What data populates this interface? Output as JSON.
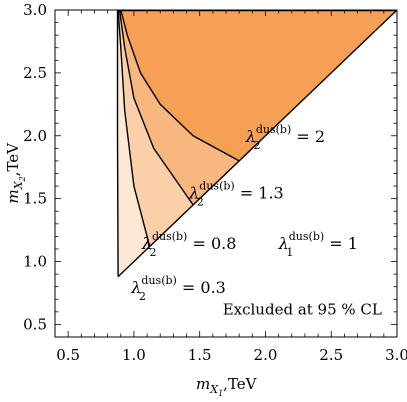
{
  "chart_data": {
    "type": "area",
    "xlabel": "m_{X_1},TeV",
    "ylabel": "m_{X_2},TeV",
    "xlim": [
      0.4,
      3.0
    ],
    "ylim": [
      0.4,
      3.0
    ],
    "x_ticks": [
      "0.5",
      "1.0",
      "1.5",
      "2.0",
      "2.5",
      "3.0"
    ],
    "y_ticks": [
      "0.5",
      "1.0",
      "1.5",
      "2.0",
      "2.5",
      "3.0"
    ],
    "x_tick_values": [
      0.5,
      1.0,
      1.5,
      2.0,
      2.5,
      3.0
    ],
    "y_tick_values": [
      0.5,
      1.0,
      1.5,
      2.0,
      2.5,
      3.0
    ],
    "diagonal": {
      "x": [
        0.88,
        3.0
      ],
      "y": [
        0.88,
        3.0
      ]
    },
    "series": [
      {
        "x": [
          0.88,
          0.875,
          0.875
        ],
        "y": [
          0.88,
          2.0,
          3.0
        ]
      },
      {
        "x": [
          1.12,
          1.0,
          0.93,
          0.9,
          0.88
        ],
        "y": [
          1.12,
          1.6,
          2.2,
          2.7,
          3.0
        ]
      },
      {
        "x": [
          1.45,
          1.15,
          1.0,
          0.93,
          0.89
        ],
        "y": [
          1.45,
          1.9,
          2.3,
          2.7,
          3.0
        ]
      },
      {
        "x": [
          1.8,
          1.45,
          1.2,
          1.05,
          0.95,
          0.9
        ],
        "y": [
          1.8,
          2.0,
          2.25,
          2.5,
          2.8,
          3.0
        ]
      }
    ],
    "shade_colors": [
      "#fde8d4",
      "#fbcfa8",
      "#f8b77f",
      "#f5a054"
    ],
    "annotations": [
      {
        "lambda": "λ",
        "sub": "2",
        "sup": "dus(b)",
        "rest": " = 2",
        "x": 1.85,
        "y": 1.95
      },
      {
        "lambda": "λ",
        "sub": "2",
        "sup": "dus(b)",
        "rest": " = 1.3",
        "x": 1.42,
        "y": 1.5
      },
      {
        "lambda": "λ",
        "sub": "2",
        "sup": "dus(b)",
        "rest": " = 0.8",
        "x": 1.06,
        "y": 1.1
      },
      {
        "lambda": "λ",
        "sub": "1",
        "sup": "dus(b)",
        "rest": " = 1",
        "x": 2.1,
        "y": 1.1
      },
      {
        "lambda": "λ",
        "sub": "2",
        "sup": "dus(b)",
        "rest": " = 0.3",
        "x": 0.98,
        "y": 0.75
      }
    ],
    "note": "Excluded at 95 % CL"
  }
}
